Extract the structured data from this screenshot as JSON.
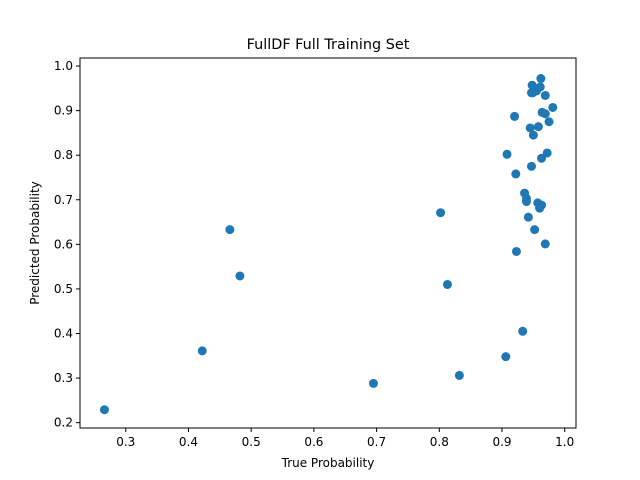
{
  "chart_data": {
    "type": "scatter",
    "title": "FullDF Full Training Set",
    "xlabel": "True Probability",
    "ylabel": "Predicted Probability",
    "xlim": [
      0.227,
      1.018
    ],
    "ylim": [
      0.188,
      1.018
    ],
    "xticks": [
      0.3,
      0.4,
      0.5,
      0.6,
      0.7,
      0.8,
      0.9,
      1.0
    ],
    "xtick_labels": [
      "0.3",
      "0.4",
      "0.5",
      "0.6",
      "0.7",
      "0.8",
      "0.9",
      "1.0"
    ],
    "yticks": [
      0.2,
      0.3,
      0.4,
      0.5,
      0.6,
      0.7,
      0.8,
      0.9,
      1.0
    ],
    "ytick_labels": [
      "0.2",
      "0.3",
      "0.4",
      "0.5",
      "0.6",
      "0.7",
      "0.8",
      "0.9",
      "1.0"
    ],
    "grid": false,
    "legend": "none",
    "marker_color": "#1f77b4",
    "x": [
      0.266,
      0.422,
      0.466,
      0.482,
      0.695,
      0.802,
      0.813,
      0.832,
      0.906,
      0.933,
      0.908,
      0.922,
      0.923,
      0.92,
      0.936,
      0.939,
      0.939,
      0.942,
      0.947,
      0.952,
      0.957,
      0.96,
      0.963,
      0.963,
      0.969,
      0.969,
      0.945,
      0.95,
      0.958,
      0.964,
      0.972,
      0.981,
      0.975,
      0.969,
      0.962,
      0.948,
      0.955,
      0.961,
      0.949,
      0.947
    ],
    "y": [
      0.229,
      0.361,
      0.633,
      0.529,
      0.288,
      0.671,
      0.51,
      0.306,
      0.348,
      0.405,
      0.802,
      0.758,
      0.584,
      0.887,
      0.715,
      0.703,
      0.696,
      0.661,
      0.775,
      0.633,
      0.693,
      0.681,
      0.688,
      0.793,
      0.601,
      0.893,
      0.861,
      0.845,
      0.864,
      0.896,
      0.805,
      0.907,
      0.875,
      0.934,
      0.972,
      0.957,
      0.944,
      0.953,
      0.94,
      0.94
    ]
  }
}
